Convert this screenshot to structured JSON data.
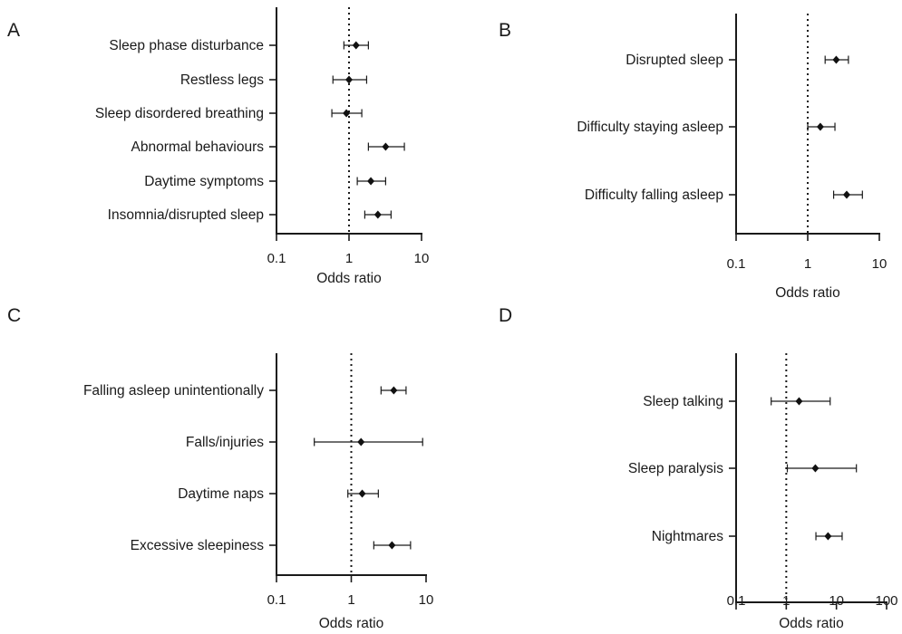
{
  "chart_data": [
    {
      "panel": "A",
      "type": "scatter",
      "subtype": "forest-plot",
      "x_scale": "log",
      "xlabel": "Odds ratio",
      "xlim": [
        0.1,
        10
      ],
      "xticks": [
        "0.1",
        "1",
        "10"
      ],
      "reference_line": 1,
      "categories": [
        "Sleep phase disturbance",
        "Restless legs",
        "Sleep disordered breathing",
        "Abnormal behaviours",
        "Daytime symptoms",
        "Insomnia/disrupted sleep"
      ],
      "estimates": [
        1.25,
        1.0,
        0.92,
        3.2,
        2.0,
        2.5
      ],
      "ci_low": [
        0.85,
        0.6,
        0.58,
        1.85,
        1.3,
        1.65
      ],
      "ci_high": [
        1.85,
        1.75,
        1.5,
        5.8,
        3.2,
        3.8
      ]
    },
    {
      "panel": "B",
      "type": "scatter",
      "subtype": "forest-plot",
      "x_scale": "log",
      "xlabel": "Odds ratio",
      "xlim": [
        0.1,
        10
      ],
      "xticks": [
        "0.1",
        "1",
        "10"
      ],
      "reference_line": 1,
      "categories": [
        "Disrupted sleep",
        "Difficulty staying asleep",
        "Difficulty falling asleep"
      ],
      "estimates": [
        2.5,
        1.5,
        3.5
      ],
      "ci_low": [
        1.75,
        1.0,
        2.3
      ],
      "ci_high": [
        3.7,
        2.4,
        5.8
      ]
    },
    {
      "panel": "C",
      "type": "scatter",
      "subtype": "forest-plot",
      "x_scale": "log",
      "xlabel": "Odds ratio",
      "xlim": [
        0.1,
        10
      ],
      "xticks": [
        "0.1",
        "1",
        "10"
      ],
      "reference_line": 1,
      "categories": [
        "Falling asleep unintentionally",
        "Falls/injuries",
        "Daytime naps",
        "Excessive sleepiness"
      ],
      "estimates": [
        3.7,
        1.35,
        1.4,
        3.5
      ],
      "ci_low": [
        2.5,
        0.32,
        0.9,
        2.0
      ],
      "ci_high": [
        5.4,
        9.0,
        2.3,
        6.2
      ]
    },
    {
      "panel": "D",
      "type": "scatter",
      "subtype": "forest-plot",
      "x_scale": "log",
      "xlabel": "Odds ratio",
      "xlim": [
        0.1,
        100
      ],
      "xticks": [
        "0.1",
        "1",
        "10",
        "100"
      ],
      "reference_line": 1,
      "categories": [
        "Sleep talking",
        "Sleep paralysis",
        "Nightmares"
      ],
      "estimates": [
        1.8,
        3.8,
        6.8
      ],
      "ci_low": [
        0.5,
        1.05,
        3.9
      ],
      "ci_high": [
        7.5,
        25,
        13
      ]
    }
  ]
}
